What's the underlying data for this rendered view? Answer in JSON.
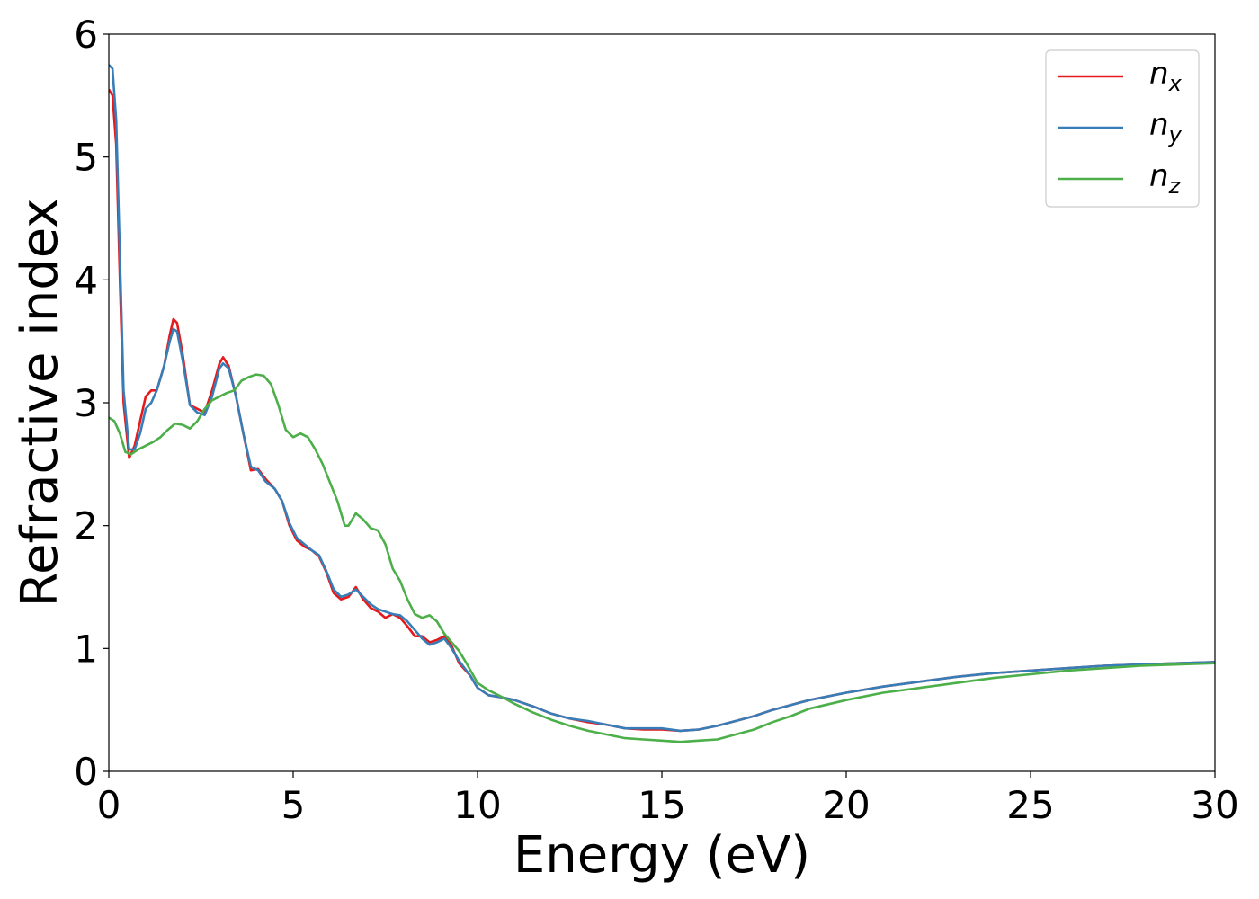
{
  "chart_data": {
    "type": "line",
    "title": "",
    "xlabel": "Energy (eV)",
    "ylabel": "Refractive index",
    "xlim": [
      0,
      30
    ],
    "ylim": [
      0,
      6
    ],
    "xticks": [
      0,
      5,
      10,
      15,
      20,
      25,
      30
    ],
    "yticks": [
      0,
      1,
      2,
      3,
      4,
      5,
      6
    ],
    "grid": false,
    "legend_position": "top-right",
    "series": [
      {
        "name": "n",
        "subscript": "x",
        "color": "#e41a1c",
        "points": [
          [
            0,
            5.55
          ],
          [
            0.1,
            5.5
          ],
          [
            0.2,
            5.1
          ],
          [
            0.3,
            4.0
          ],
          [
            0.4,
            3.0
          ],
          [
            0.55,
            2.55
          ],
          [
            0.7,
            2.65
          ],
          [
            0.85,
            2.85
          ],
          [
            1.0,
            3.05
          ],
          [
            1.15,
            3.1
          ],
          [
            1.3,
            3.1
          ],
          [
            1.5,
            3.3
          ],
          [
            1.65,
            3.55
          ],
          [
            1.75,
            3.68
          ],
          [
            1.85,
            3.65
          ],
          [
            2.0,
            3.4
          ],
          [
            2.2,
            2.98
          ],
          [
            2.4,
            2.95
          ],
          [
            2.6,
            2.92
          ],
          [
            2.8,
            3.1
          ],
          [
            3.0,
            3.32
          ],
          [
            3.1,
            3.37
          ],
          [
            3.25,
            3.3
          ],
          [
            3.45,
            3.05
          ],
          [
            3.65,
            2.75
          ],
          [
            3.85,
            2.45
          ],
          [
            4.05,
            2.46
          ],
          [
            4.25,
            2.38
          ],
          [
            4.5,
            2.3
          ],
          [
            4.7,
            2.2
          ],
          [
            4.9,
            2.0
          ],
          [
            5.1,
            1.88
          ],
          [
            5.3,
            1.83
          ],
          [
            5.5,
            1.8
          ],
          [
            5.7,
            1.75
          ],
          [
            5.9,
            1.62
          ],
          [
            6.1,
            1.45
          ],
          [
            6.3,
            1.4
          ],
          [
            6.5,
            1.42
          ],
          [
            6.7,
            1.5
          ],
          [
            6.9,
            1.4
          ],
          [
            7.1,
            1.33
          ],
          [
            7.3,
            1.3
          ],
          [
            7.5,
            1.25
          ],
          [
            7.7,
            1.28
          ],
          [
            7.9,
            1.25
          ],
          [
            8.1,
            1.18
          ],
          [
            8.3,
            1.1
          ],
          [
            8.5,
            1.1
          ],
          [
            8.7,
            1.05
          ],
          [
            8.9,
            1.07
          ],
          [
            9.1,
            1.1
          ],
          [
            9.3,
            1.02
          ],
          [
            9.5,
            0.88
          ],
          [
            9.8,
            0.78
          ],
          [
            10.0,
            0.68
          ],
          [
            10.3,
            0.62
          ],
          [
            10.7,
            0.6
          ],
          [
            11.0,
            0.58
          ],
          [
            11.5,
            0.53
          ],
          [
            12.0,
            0.47
          ],
          [
            12.5,
            0.43
          ],
          [
            13.0,
            0.4
          ],
          [
            13.5,
            0.38
          ],
          [
            14.0,
            0.35
          ],
          [
            14.5,
            0.34
          ],
          [
            15.0,
            0.34
          ],
          [
            15.5,
            0.33
          ],
          [
            16.0,
            0.34
          ],
          [
            16.5,
            0.37
          ],
          [
            17.0,
            0.41
          ],
          [
            17.5,
            0.45
          ],
          [
            18.0,
            0.5
          ],
          [
            19.0,
            0.58
          ],
          [
            20.0,
            0.64
          ],
          [
            21.0,
            0.69
          ],
          [
            22.0,
            0.73
          ],
          [
            23.0,
            0.77
          ],
          [
            24.0,
            0.8
          ],
          [
            25.0,
            0.82
          ],
          [
            26.0,
            0.84
          ],
          [
            27.0,
            0.86
          ],
          [
            28.0,
            0.87
          ],
          [
            29.0,
            0.88
          ],
          [
            30.0,
            0.89
          ]
        ]
      },
      {
        "name": "n",
        "subscript": "y",
        "color": "#377eb8",
        "points": [
          [
            0,
            5.75
          ],
          [
            0.1,
            5.72
          ],
          [
            0.2,
            5.3
          ],
          [
            0.3,
            4.2
          ],
          [
            0.4,
            3.1
          ],
          [
            0.55,
            2.62
          ],
          [
            0.7,
            2.62
          ],
          [
            0.85,
            2.75
          ],
          [
            1.0,
            2.95
          ],
          [
            1.15,
            3.0
          ],
          [
            1.3,
            3.1
          ],
          [
            1.5,
            3.3
          ],
          [
            1.65,
            3.5
          ],
          [
            1.75,
            3.6
          ],
          [
            1.85,
            3.58
          ],
          [
            2.0,
            3.35
          ],
          [
            2.2,
            2.98
          ],
          [
            2.4,
            2.92
          ],
          [
            2.6,
            2.9
          ],
          [
            2.8,
            3.05
          ],
          [
            3.0,
            3.28
          ],
          [
            3.1,
            3.32
          ],
          [
            3.25,
            3.28
          ],
          [
            3.45,
            3.05
          ],
          [
            3.65,
            2.75
          ],
          [
            3.85,
            2.48
          ],
          [
            4.05,
            2.45
          ],
          [
            4.25,
            2.36
          ],
          [
            4.5,
            2.3
          ],
          [
            4.7,
            2.2
          ],
          [
            4.9,
            2.02
          ],
          [
            5.1,
            1.9
          ],
          [
            5.3,
            1.85
          ],
          [
            5.5,
            1.8
          ],
          [
            5.7,
            1.76
          ],
          [
            5.9,
            1.63
          ],
          [
            6.1,
            1.48
          ],
          [
            6.3,
            1.42
          ],
          [
            6.5,
            1.44
          ],
          [
            6.7,
            1.48
          ],
          [
            6.9,
            1.42
          ],
          [
            7.1,
            1.36
          ],
          [
            7.3,
            1.32
          ],
          [
            7.5,
            1.3
          ],
          [
            7.7,
            1.28
          ],
          [
            7.9,
            1.27
          ],
          [
            8.1,
            1.22
          ],
          [
            8.3,
            1.15
          ],
          [
            8.5,
            1.08
          ],
          [
            8.7,
            1.03
          ],
          [
            8.9,
            1.05
          ],
          [
            9.1,
            1.08
          ],
          [
            9.3,
            1.0
          ],
          [
            9.5,
            0.9
          ],
          [
            9.8,
            0.78
          ],
          [
            10.0,
            0.68
          ],
          [
            10.3,
            0.62
          ],
          [
            10.7,
            0.6
          ],
          [
            11.0,
            0.58
          ],
          [
            11.5,
            0.53
          ],
          [
            12.0,
            0.47
          ],
          [
            12.5,
            0.43
          ],
          [
            13.0,
            0.41
          ],
          [
            13.5,
            0.38
          ],
          [
            14.0,
            0.35
          ],
          [
            14.5,
            0.35
          ],
          [
            15.0,
            0.35
          ],
          [
            15.5,
            0.33
          ],
          [
            16.0,
            0.34
          ],
          [
            16.5,
            0.37
          ],
          [
            17.0,
            0.41
          ],
          [
            17.5,
            0.45
          ],
          [
            18.0,
            0.5
          ],
          [
            19.0,
            0.58
          ],
          [
            20.0,
            0.64
          ],
          [
            21.0,
            0.69
          ],
          [
            22.0,
            0.73
          ],
          [
            23.0,
            0.77
          ],
          [
            24.0,
            0.8
          ],
          [
            25.0,
            0.82
          ],
          [
            26.0,
            0.84
          ],
          [
            27.0,
            0.86
          ],
          [
            28.0,
            0.87
          ],
          [
            29.0,
            0.88
          ],
          [
            30.0,
            0.89
          ]
        ]
      },
      {
        "name": "n",
        "subscript": "z",
        "color": "#4daf4a",
        "points": [
          [
            0,
            2.88
          ],
          [
            0.15,
            2.85
          ],
          [
            0.3,
            2.75
          ],
          [
            0.45,
            2.6
          ],
          [
            0.6,
            2.58
          ],
          [
            0.8,
            2.62
          ],
          [
            1.0,
            2.65
          ],
          [
            1.2,
            2.68
          ],
          [
            1.4,
            2.72
          ],
          [
            1.6,
            2.78
          ],
          [
            1.8,
            2.83
          ],
          [
            2.0,
            2.82
          ],
          [
            2.2,
            2.79
          ],
          [
            2.4,
            2.85
          ],
          [
            2.6,
            2.95
          ],
          [
            2.8,
            3.02
          ],
          [
            3.0,
            3.05
          ],
          [
            3.2,
            3.08
          ],
          [
            3.4,
            3.1
          ],
          [
            3.6,
            3.18
          ],
          [
            3.8,
            3.21
          ],
          [
            4.0,
            3.23
          ],
          [
            4.2,
            3.22
          ],
          [
            4.4,
            3.15
          ],
          [
            4.6,
            2.98
          ],
          [
            4.8,
            2.78
          ],
          [
            5.0,
            2.72
          ],
          [
            5.2,
            2.75
          ],
          [
            5.4,
            2.72
          ],
          [
            5.6,
            2.62
          ],
          [
            5.8,
            2.5
          ],
          [
            6.0,
            2.35
          ],
          [
            6.2,
            2.2
          ],
          [
            6.4,
            2.0
          ],
          [
            6.5,
            2.0
          ],
          [
            6.7,
            2.1
          ],
          [
            6.9,
            2.05
          ],
          [
            7.1,
            1.98
          ],
          [
            7.3,
            1.96
          ],
          [
            7.5,
            1.85
          ],
          [
            7.7,
            1.65
          ],
          [
            7.9,
            1.55
          ],
          [
            8.1,
            1.4
          ],
          [
            8.3,
            1.28
          ],
          [
            8.5,
            1.25
          ],
          [
            8.7,
            1.27
          ],
          [
            8.9,
            1.22
          ],
          [
            9.1,
            1.12
          ],
          [
            9.3,
            1.05
          ],
          [
            9.5,
            0.98
          ],
          [
            9.7,
            0.88
          ],
          [
            10.0,
            0.72
          ],
          [
            10.3,
            0.66
          ],
          [
            10.7,
            0.6
          ],
          [
            11.0,
            0.55
          ],
          [
            11.5,
            0.48
          ],
          [
            12.0,
            0.42
          ],
          [
            12.5,
            0.37
          ],
          [
            13.0,
            0.33
          ],
          [
            13.5,
            0.3
          ],
          [
            14.0,
            0.27
          ],
          [
            14.5,
            0.26
          ],
          [
            15.0,
            0.25
          ],
          [
            15.5,
            0.24
          ],
          [
            16.0,
            0.25
          ],
          [
            16.5,
            0.26
          ],
          [
            17.0,
            0.3
          ],
          [
            17.5,
            0.34
          ],
          [
            18.0,
            0.4
          ],
          [
            18.5,
            0.45
          ],
          [
            19.0,
            0.51
          ],
          [
            20.0,
            0.58
          ],
          [
            21.0,
            0.64
          ],
          [
            22.0,
            0.68
          ],
          [
            23.0,
            0.72
          ],
          [
            24.0,
            0.76
          ],
          [
            25.0,
            0.79
          ],
          [
            26.0,
            0.82
          ],
          [
            27.0,
            0.84
          ],
          [
            28.0,
            0.86
          ],
          [
            29.0,
            0.87
          ],
          [
            30.0,
            0.88
          ]
        ]
      }
    ]
  }
}
